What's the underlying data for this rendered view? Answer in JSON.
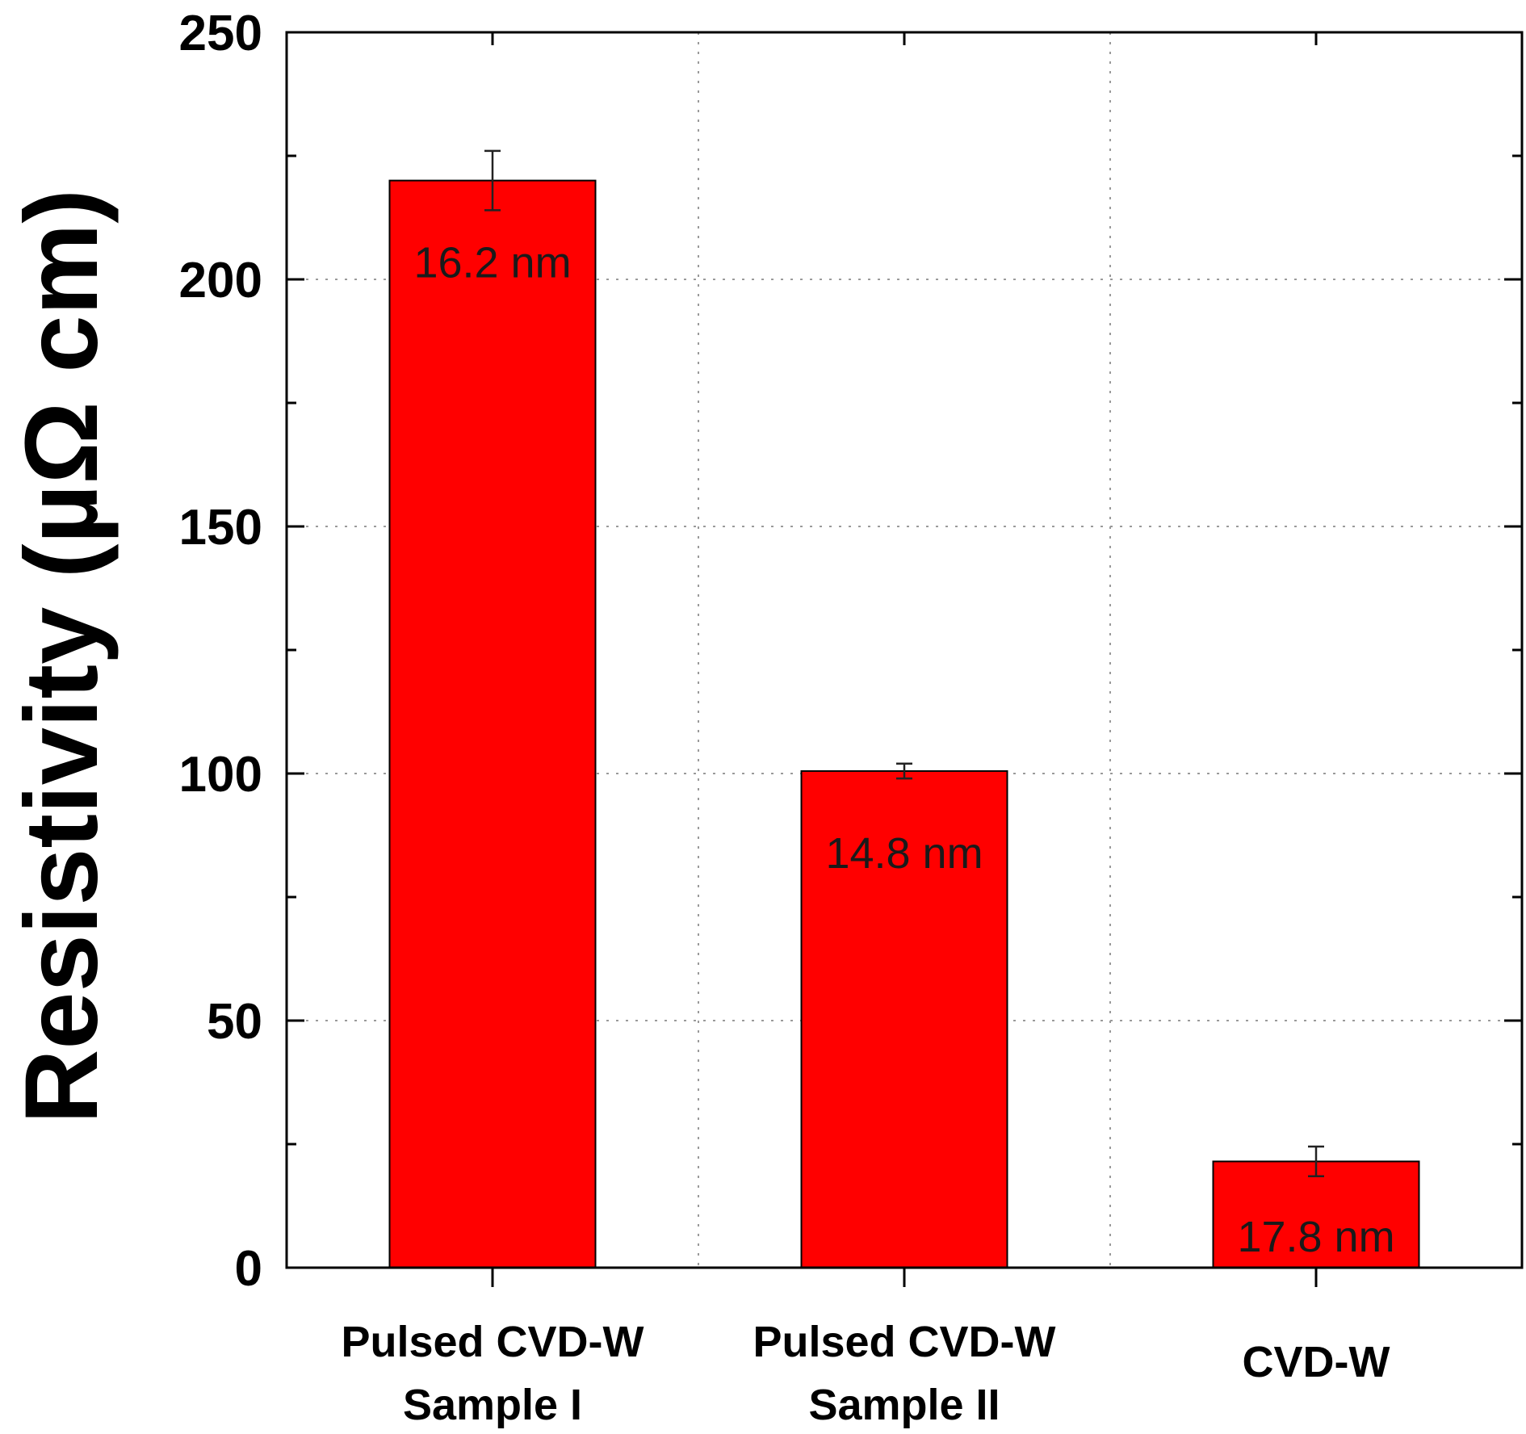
{
  "chart_data": {
    "type": "bar",
    "categories": [
      [
        "Pulsed CVD-W",
        "Sample I"
      ],
      [
        "Pulsed CVD-W",
        "Sample II"
      ],
      [
        "CVD-W"
      ]
    ],
    "values": [
      220,
      100.5,
      21.5
    ],
    "errors": [
      6,
      1.5,
      3
    ],
    "bar_labels": [
      "16.2 nm",
      "14.8 nm",
      "17.8 nm"
    ],
    "bar_color": "#ff0000",
    "title": "",
    "xlabel": "",
    "ylabel": "Resistivity (µΩ cm)",
    "ylim": [
      0,
      250
    ],
    "yticks": [
      0,
      50,
      100,
      150,
      200,
      250
    ],
    "grid": true
  }
}
